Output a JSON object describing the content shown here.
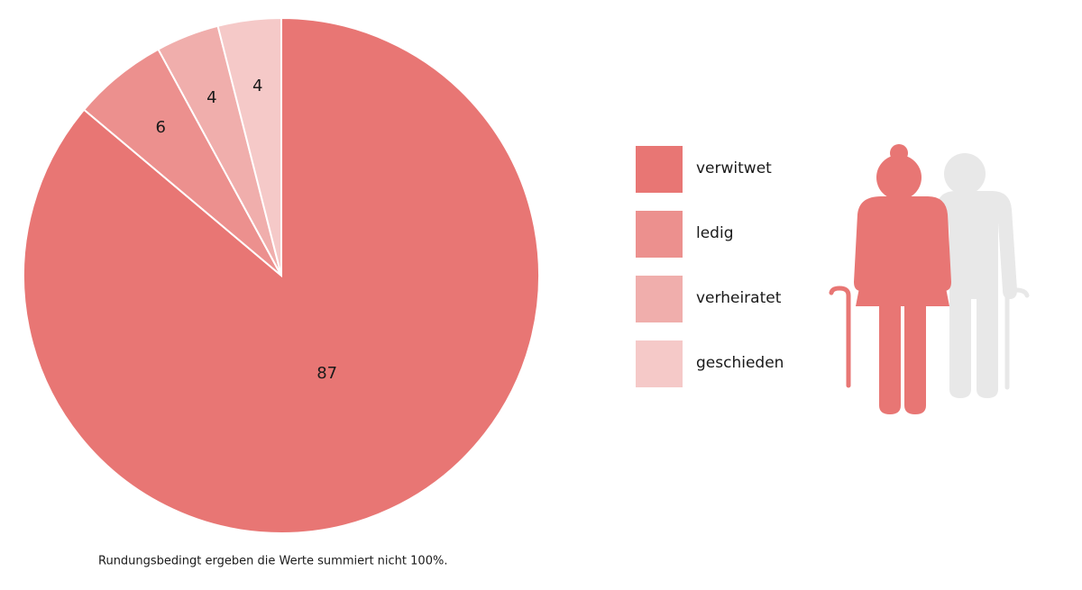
{
  "chart_data": {
    "type": "pie",
    "categories": [
      "verwitwet",
      "ledig",
      "verheiratet",
      "geschieden"
    ],
    "values": [
      87,
      6,
      4,
      4
    ],
    "colors": [
      "#e87674",
      "#ec908e",
      "#f0aeac",
      "#f5c9c8"
    ],
    "note": "Rundungsbedingt ergeben die Werte summiert nicht 100%."
  }
}
